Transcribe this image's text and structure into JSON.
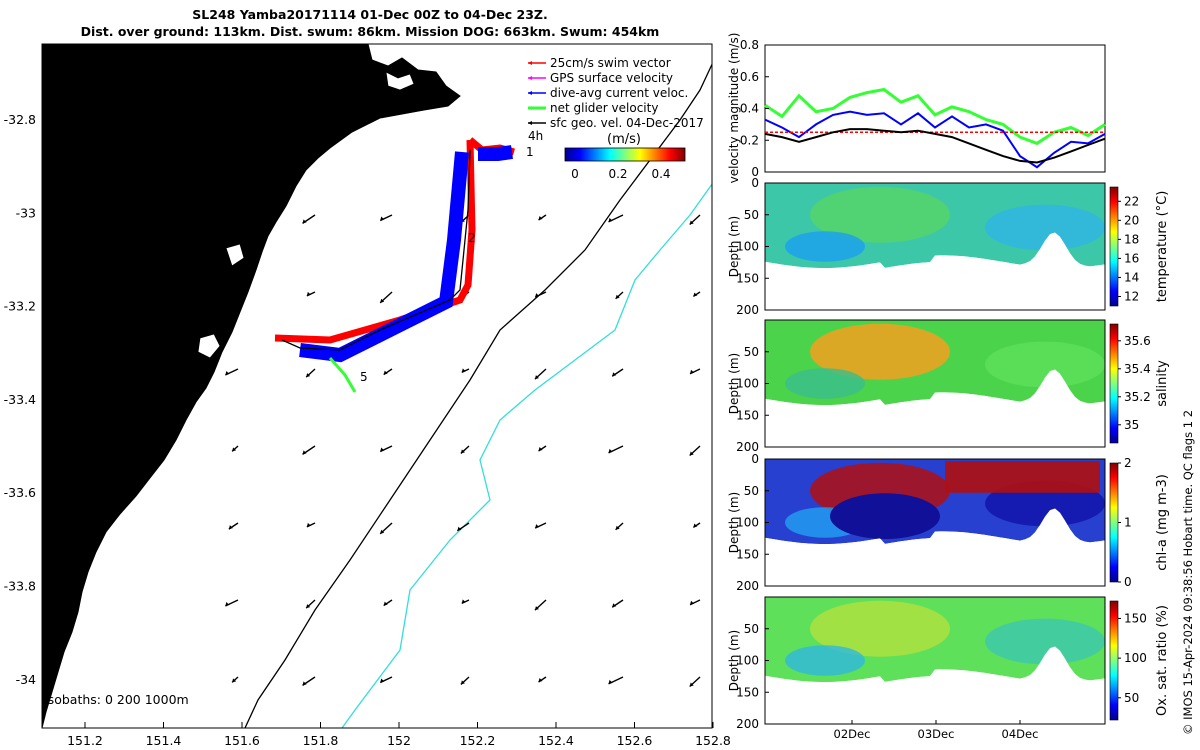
{
  "header": {
    "line1": "SL248 Yamba20171114 01-Dec 00Z to 04-Dec 23Z.",
    "line2": "Dist. over ground: 113km. Dist. swum: 86km. Mission DOG: 663km. Swum: 454km"
  },
  "footer_text": "© IMOS 15-Apr-2024 09:38:56 Hobart time. QC flags 1  2",
  "colors": {
    "land": "#fcc792",
    "swim": "#ff0000",
    "gps": "#ff00ff",
    "diveavg": "#0000ff",
    "net": "#33ff33",
    "sfcgeo": "#000000",
    "isobath200": "#000000",
    "isobath1000": "#33dddd"
  },
  "map": {
    "legend": [
      "25cm/s swim vector",
      "GPS surface velocity",
      "dive-avg current veloc.",
      "net glider velocity",
      "sfc geo. vel. 04-Dec-2017"
    ],
    "colorbar_label": "(m/s)",
    "colorbar_ticks": [
      "0",
      "0.2",
      "0.4"
    ],
    "isobaths_label": "Isobaths: 0   200  1000m",
    "x_ticks": [
      "151.2",
      "151.4",
      "151.6",
      "151.8",
      "152",
      "152.2",
      "152.4",
      "152.6",
      "152.8"
    ],
    "y_ticks": [
      "-32.8",
      "-33",
      "-33.2",
      "-33.4",
      "-33.6",
      "-33.8",
      "-34"
    ],
    "day_labels": [
      "4h",
      "1",
      "2",
      "5"
    ]
  },
  "chart_data": [
    {
      "type": "line",
      "ylabel": "velocity magnitude (m/s)",
      "ylim": [
        0,
        0.8
      ],
      "yticks": [
        "0",
        "0.2",
        "0.4",
        "0.6",
        "0.8"
      ],
      "x": [
        0,
        0.25,
        0.5,
        0.75,
        1,
        1.25,
        1.5,
        1.75,
        2,
        2.25,
        2.5,
        2.75,
        3,
        3.25,
        3.5,
        3.75,
        4,
        4.25,
        4.5,
        4.75,
        5
      ],
      "series": [
        {
          "name": "net glider velocity",
          "values": [
            0.42,
            0.35,
            0.48,
            0.38,
            0.4,
            0.47,
            0.5,
            0.52,
            0.44,
            0.48,
            0.36,
            0.41,
            0.38,
            0.33,
            0.3,
            0.22,
            0.18,
            0.25,
            0.28,
            0.23,
            0.3
          ]
        },
        {
          "name": "dive-avg current veloc.",
          "values": [
            0.33,
            0.28,
            0.22,
            0.3,
            0.36,
            0.38,
            0.36,
            0.37,
            0.3,
            0.37,
            0.28,
            0.35,
            0.28,
            0.3,
            0.26,
            0.1,
            0.03,
            0.12,
            0.19,
            0.18,
            0.24
          ]
        },
        {
          "name": "25cm/s swim vector",
          "values": [
            0.25,
            0.25,
            0.25,
            0.25,
            0.25,
            0.25,
            0.25,
            0.25,
            0.25,
            0.25,
            0.25,
            0.25,
            0.25,
            0.25,
            0.25,
            0.25,
            0.25,
            0.25,
            0.25,
            0.25,
            0.25
          ]
        },
        {
          "name": "sfc geo. vel. 04-Dec-2017",
          "values": [
            0.24,
            0.22,
            0.19,
            0.22,
            0.25,
            0.27,
            0.27,
            0.26,
            0.25,
            0.26,
            0.24,
            0.22,
            0.18,
            0.14,
            0.1,
            0.07,
            0.06,
            0.09,
            0.13,
            0.17,
            0.21
          ]
        }
      ]
    },
    {
      "type": "heatmap",
      "ylabel": "Depth (m)",
      "colorbar_label": "temperature (°C)",
      "ylim": [
        200,
        0
      ],
      "yticks": [
        "0",
        "50",
        "100",
        "150",
        "200"
      ],
      "cticks": [
        "12",
        "14",
        "16",
        "18",
        "20",
        "22"
      ],
      "clim": [
        11,
        23.5
      ]
    },
    {
      "type": "heatmap",
      "ylabel": "Depth (m)",
      "colorbar_label": "salinity",
      "ylim": [
        200,
        0
      ],
      "yticks": [
        "50",
        "100",
        "150",
        "200"
      ],
      "cticks": [
        "35",
        "35.2",
        "35.4",
        "35.6"
      ],
      "clim": [
        34.87,
        35.72
      ]
    },
    {
      "type": "heatmap",
      "ylabel": "Depth (m)",
      "colorbar_label": "chl-a (mg m-3)",
      "ylim": [
        200,
        0
      ],
      "yticks": [
        "0",
        "50",
        "100",
        "150",
        "200"
      ],
      "cticks": [
        "0",
        "1",
        "2"
      ],
      "clim": [
        0,
        2
      ]
    },
    {
      "type": "heatmap",
      "ylabel": "Depth (m)",
      "colorbar_label": "Ox. sat. ratio (%)",
      "ylim": [
        200,
        0
      ],
      "yticks": [
        "50",
        "100",
        "150",
        "200"
      ],
      "cticks": [
        "50",
        "100",
        "150"
      ],
      "clim": [
        22,
        172
      ],
      "x_ticks": [
        "02Dec",
        "03Dec",
        "04Dec"
      ]
    }
  ]
}
